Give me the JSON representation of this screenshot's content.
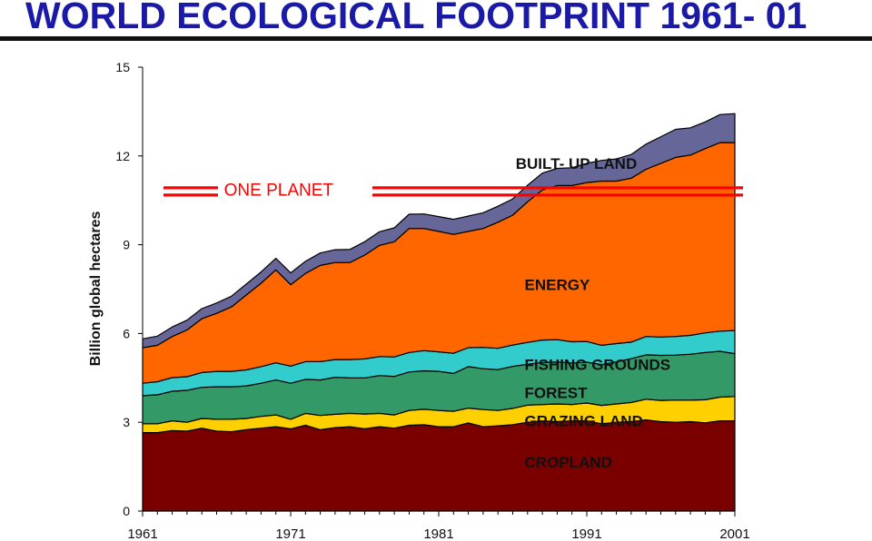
{
  "title": "WORLD ECOLOGICAL FOOTPRINT 1961- 01",
  "chart_data": {
    "type": "area",
    "stacked": true,
    "ylabel": "Billion global hectares",
    "xlabel": "",
    "ylim": [
      0,
      15
    ],
    "xlim": [
      1961,
      2001
    ],
    "yticks": [
      0,
      3,
      6,
      9,
      12,
      15
    ],
    "xticks": [
      1961,
      1971,
      1981,
      1991,
      2001
    ],
    "x": [
      1961,
      1962,
      1963,
      1964,
      1965,
      1966,
      1967,
      1968,
      1969,
      1970,
      1971,
      1972,
      1973,
      1974,
      1975,
      1976,
      1977,
      1978,
      1979,
      1980,
      1981,
      1982,
      1983,
      1984,
      1985,
      1986,
      1987,
      1988,
      1989,
      1990,
      1991,
      1992,
      1993,
      1994,
      1995,
      1996,
      1997,
      1998,
      1999,
      2000,
      2001
    ],
    "series": [
      {
        "name": "CROPLAND",
        "color": "#7a0000",
        "values": [
          2.65,
          2.65,
          2.72,
          2.7,
          2.8,
          2.7,
          2.68,
          2.75,
          2.8,
          2.85,
          2.78,
          2.9,
          2.75,
          2.82,
          2.85,
          2.78,
          2.85,
          2.8,
          2.9,
          2.92,
          2.85,
          2.85,
          2.98,
          2.85,
          2.88,
          2.92,
          3.0,
          3.05,
          3.02,
          3.05,
          3.05,
          2.95,
          3.0,
          3.02,
          3.08,
          3.02,
          3.0,
          3.02,
          2.98,
          3.05,
          3.05
        ]
      },
      {
        "name": "GRAZING LAND",
        "color": "#ffd000",
        "values": [
          0.3,
          0.3,
          0.33,
          0.3,
          0.33,
          0.4,
          0.42,
          0.38,
          0.4,
          0.4,
          0.32,
          0.4,
          0.48,
          0.45,
          0.45,
          0.5,
          0.45,
          0.45,
          0.5,
          0.52,
          0.55,
          0.52,
          0.5,
          0.58,
          0.52,
          0.55,
          0.58,
          0.55,
          0.6,
          0.55,
          0.6,
          0.62,
          0.62,
          0.65,
          0.7,
          0.72,
          0.75,
          0.73,
          0.78,
          0.8,
          0.82
        ]
      },
      {
        "name": "FOREST",
        "color": "#339966",
        "values": [
          0.95,
          0.98,
          1.0,
          1.08,
          1.05,
          1.1,
          1.1,
          1.1,
          1.12,
          1.18,
          1.22,
          1.15,
          1.2,
          1.25,
          1.2,
          1.22,
          1.28,
          1.3,
          1.3,
          1.3,
          1.32,
          1.28,
          1.4,
          1.38,
          1.38,
          1.42,
          1.38,
          1.42,
          1.42,
          1.4,
          1.38,
          1.38,
          1.42,
          1.48,
          1.5,
          1.52,
          1.52,
          1.55,
          1.6,
          1.55,
          1.45
        ]
      },
      {
        "name": "FISHING GROUNDS",
        "color": "#33cccc",
        "values": [
          0.42,
          0.44,
          0.46,
          0.46,
          0.5,
          0.52,
          0.52,
          0.54,
          0.56,
          0.58,
          0.58,
          0.6,
          0.62,
          0.6,
          0.62,
          0.64,
          0.64,
          0.66,
          0.66,
          0.68,
          0.66,
          0.68,
          0.64,
          0.72,
          0.72,
          0.72,
          0.74,
          0.76,
          0.75,
          0.72,
          0.7,
          0.65,
          0.62,
          0.56,
          0.62,
          0.62,
          0.63,
          0.64,
          0.66,
          0.68,
          0.78
        ]
      },
      {
        "name": "ENERGY",
        "color": "#ff6600",
        "values": [
          1.2,
          1.23,
          1.39,
          1.58,
          1.82,
          1.96,
          2.18,
          2.53,
          2.82,
          3.14,
          2.75,
          2.98,
          3.25,
          3.28,
          3.28,
          3.51,
          3.76,
          3.89,
          4.19,
          4.13,
          4.07,
          4.02,
          3.93,
          4.02,
          4.26,
          4.39,
          4.75,
          5.07,
          5.21,
          5.28,
          5.37,
          5.55,
          5.49,
          5.54,
          5.65,
          5.87,
          6.05,
          6.09,
          6.23,
          6.37,
          6.35
        ]
      },
      {
        "name": "BUILT- UP LAND",
        "color": "#666699",
        "values": [
          0.3,
          0.31,
          0.32,
          0.33,
          0.34,
          0.35,
          0.36,
          0.37,
          0.38,
          0.39,
          0.4,
          0.41,
          0.42,
          0.43,
          0.44,
          0.45,
          0.46,
          0.47,
          0.48,
          0.49,
          0.5,
          0.51,
          0.52,
          0.53,
          0.54,
          0.55,
          0.56,
          0.57,
          0.58,
          0.6,
          0.65,
          0.7,
          0.75,
          0.8,
          0.85,
          0.9,
          0.95,
          0.92,
          0.9,
          0.95,
          0.98
        ]
      }
    ],
    "annotations": [
      {
        "text": "ONE PLANET",
        "x": 1966.5,
        "y": 10.85
      },
      {
        "text": "BUILT- UP LAND",
        "x": 1986.2,
        "y": 11.75
      },
      {
        "text": "ENERGY",
        "x": 1986.8,
        "y": 7.65
      },
      {
        "text": "FISHING GROUNDS",
        "x": 1986.8,
        "y": 4.95
      },
      {
        "text": "FOREST",
        "x": 1986.8,
        "y": 4.0
      },
      {
        "text": "GRAZING LAND",
        "x": 1986.8,
        "y": 3.05
      },
      {
        "text": "CROPLAND",
        "x": 1986.8,
        "y": 1.65
      }
    ],
    "reference_line": {
      "label": "ONE PLANET",
      "y": 10.8,
      "color": "#ff0000"
    },
    "legend": "none",
    "grid": false
  }
}
